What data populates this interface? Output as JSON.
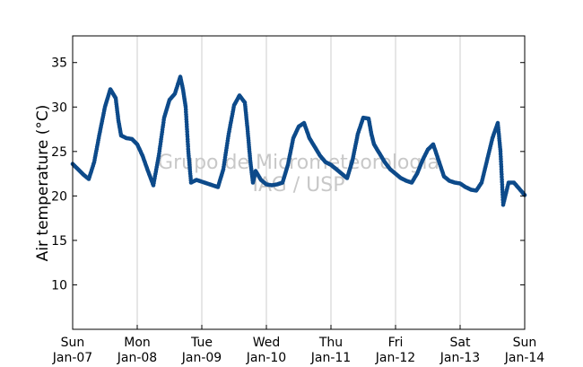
{
  "chart_data": {
    "type": "scatter",
    "title": "",
    "xlabel": "",
    "ylabel": "Air temperature (°C)",
    "ylim": [
      5,
      38
    ],
    "yticks": [
      10,
      15,
      20,
      25,
      30,
      35
    ],
    "xlim": [
      "2014-01-07 00:00",
      "2014-01-14 00:00"
    ],
    "xticks": [
      {
        "day": "Sun",
        "date": "Jan-07"
      },
      {
        "day": "Mon",
        "date": "Jan-08"
      },
      {
        "day": "Tue",
        "date": "Jan-09"
      },
      {
        "day": "Wed",
        "date": "Jan-10"
      },
      {
        "day": "Thu",
        "date": "Jan-11"
      },
      {
        "day": "Fri",
        "date": "Jan-12"
      },
      {
        "day": "Sat",
        "date": "Jan-13"
      },
      {
        "day": "Sun",
        "date": "Jan-14"
      }
    ],
    "grid": "vertical",
    "marker_color": "#0d4a8a",
    "watermark": [
      "Grupo de Micrometeorologia",
      "IAG / USP"
    ],
    "series": [
      {
        "points": [
          [
            "2014-01-07 00:00",
            23.6
          ],
          [
            "2014-01-07 02:00",
            23.0
          ],
          [
            "2014-01-07 04:00",
            22.4
          ],
          [
            "2014-01-07 06:00",
            21.9
          ],
          [
            "2014-01-07 08:00",
            23.8
          ],
          [
            "2014-01-07 10:00",
            27.0
          ],
          [
            "2014-01-07 12:00",
            30.0
          ],
          [
            "2014-01-07 14:00",
            32.0
          ],
          [
            "2014-01-07 15:00",
            31.5
          ],
          [
            "2014-01-07 16:00",
            31.0
          ],
          [
            "2014-01-07 17:00",
            28.5
          ],
          [
            "2014-01-07 18:00",
            26.8
          ],
          [
            "2014-01-07 20:00",
            26.5
          ],
          [
            "2014-01-07 22:00",
            26.4
          ],
          [
            "2014-01-08 00:00",
            25.8
          ],
          [
            "2014-01-08 02:00",
            24.5
          ],
          [
            "2014-01-08 04:00",
            22.8
          ],
          [
            "2014-01-08 06:00",
            21.2
          ],
          [
            "2014-01-08 08:00",
            24.5
          ],
          [
            "2014-01-08 10:00",
            28.8
          ],
          [
            "2014-01-08 12:00",
            30.8
          ],
          [
            "2014-01-08 14:00",
            31.5
          ],
          [
            "2014-01-08 16:00",
            33.4
          ],
          [
            "2014-01-08 17:00",
            32.0
          ],
          [
            "2014-01-08 18:00",
            30.0
          ],
          [
            "2014-01-08 19:00",
            25.0
          ],
          [
            "2014-01-08 20:00",
            21.5
          ],
          [
            "2014-01-08 22:00",
            21.8
          ],
          [
            "2014-01-09 00:00",
            21.6
          ],
          [
            "2014-01-09 02:00",
            21.4
          ],
          [
            "2014-01-09 04:00",
            21.2
          ],
          [
            "2014-01-09 06:00",
            21.0
          ],
          [
            "2014-01-09 08:00",
            23.0
          ],
          [
            "2014-01-09 10:00",
            27.0
          ],
          [
            "2014-01-09 12:00",
            30.2
          ],
          [
            "2014-01-09 14:00",
            31.3
          ],
          [
            "2014-01-09 16:00",
            30.5
          ],
          [
            "2014-01-09 17:00",
            27.5
          ],
          [
            "2014-01-09 18:00",
            24.0
          ],
          [
            "2014-01-09 19:00",
            21.5
          ],
          [
            "2014-01-09 20:00",
            22.8
          ],
          [
            "2014-01-09 22:00",
            21.8
          ],
          [
            "2014-01-10 00:00",
            21.3
          ],
          [
            "2014-01-10 02:00",
            21.2
          ],
          [
            "2014-01-10 04:00",
            21.3
          ],
          [
            "2014-01-10 06:00",
            21.5
          ],
          [
            "2014-01-10 08:00",
            23.5
          ],
          [
            "2014-01-10 10:00",
            26.5
          ],
          [
            "2014-01-10 12:00",
            27.8
          ],
          [
            "2014-01-10 14:00",
            28.2
          ],
          [
            "2014-01-10 16:00",
            26.5
          ],
          [
            "2014-01-10 18:00",
            25.5
          ],
          [
            "2014-01-10 20:00",
            24.5
          ],
          [
            "2014-01-10 22:00",
            23.8
          ],
          [
            "2014-01-11 00:00",
            23.5
          ],
          [
            "2014-01-11 02:00",
            23.0
          ],
          [
            "2014-01-11 04:00",
            22.5
          ],
          [
            "2014-01-11 06:00",
            22.0
          ],
          [
            "2014-01-11 08:00",
            24.0
          ],
          [
            "2014-01-11 10:00",
            27.0
          ],
          [
            "2014-01-11 12:00",
            28.8
          ],
          [
            "2014-01-11 14:00",
            28.7
          ],
          [
            "2014-01-11 15:00",
            27.0
          ],
          [
            "2014-01-11 16:00",
            25.8
          ],
          [
            "2014-01-11 18:00",
            24.8
          ],
          [
            "2014-01-11 20:00",
            23.8
          ],
          [
            "2014-01-11 22:00",
            23.0
          ],
          [
            "2014-01-12 00:00",
            22.5
          ],
          [
            "2014-01-12 02:00",
            22.0
          ],
          [
            "2014-01-12 04:00",
            21.7
          ],
          [
            "2014-01-12 06:00",
            21.5
          ],
          [
            "2014-01-12 08:00",
            22.5
          ],
          [
            "2014-01-12 10:00",
            24.0
          ],
          [
            "2014-01-12 12:00",
            25.2
          ],
          [
            "2014-01-12 14:00",
            25.8
          ],
          [
            "2014-01-12 16:00",
            24.0
          ],
          [
            "2014-01-12 18:00",
            22.2
          ],
          [
            "2014-01-12 20:00",
            21.7
          ],
          [
            "2014-01-12 22:00",
            21.5
          ],
          [
            "2014-01-13 00:00",
            21.4
          ],
          [
            "2014-01-13 02:00",
            21.0
          ],
          [
            "2014-01-13 04:00",
            20.7
          ],
          [
            "2014-01-13 06:00",
            20.6
          ],
          [
            "2014-01-13 08:00",
            21.5
          ],
          [
            "2014-01-13 10:00",
            24.0
          ],
          [
            "2014-01-13 12:00",
            26.5
          ],
          [
            "2014-01-13 14:00",
            28.2
          ],
          [
            "2014-01-13 15:00",
            25.0
          ],
          [
            "2014-01-13 16:00",
            19.0
          ],
          [
            "2014-01-13 18:00",
            21.5
          ],
          [
            "2014-01-13 20:00",
            21.5
          ],
          [
            "2014-01-13 22:00",
            20.8
          ],
          [
            "2014-01-14 00:00",
            20.1
          ]
        ]
      }
    ]
  }
}
